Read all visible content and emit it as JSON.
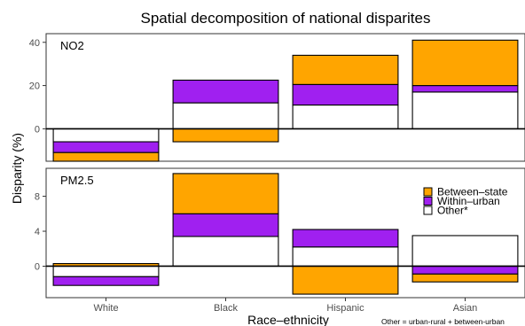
{
  "chart_data": {
    "type": "bar",
    "title": "Spatial decomposition of national disparites",
    "xlabel": "Race–ethnicity",
    "ylabel": "Disparity (%)",
    "categories": [
      "White",
      "Black",
      "Hispanic",
      "Asian"
    ],
    "legend": {
      "placement": "right",
      "entries": [
        {
          "name": "Between–state",
          "color": "#FFA500"
        },
        {
          "name": "Within–urban",
          "color": "#A020F0"
        },
        {
          "name": "Other*",
          "color": "#FFFFFF"
        }
      ]
    },
    "note": "Other = urban-rural + between-urban",
    "panels": [
      {
        "label": "NO2",
        "ylim": [
          -15,
          44
        ],
        "yticks": [
          0,
          20,
          40
        ],
        "series": [
          {
            "name": "Other*",
            "values": [
              -6,
              12,
              11,
              17
            ]
          },
          {
            "name": "Within–urban",
            "values": [
              -5,
              10.5,
              9.5,
              3
            ]
          },
          {
            "name": "Between–state",
            "values": [
              -4,
              -6,
              13.5,
              21
            ]
          }
        ]
      },
      {
        "label": "PM2.5",
        "ylim": [
          -3.6,
          11.2
        ],
        "yticks": [
          0,
          4,
          8
        ],
        "series": [
          {
            "name": "Other*",
            "values": [
              -1.2,
              3.4,
              2.2,
              3.5
            ]
          },
          {
            "name": "Within–urban",
            "values": [
              -1.0,
              2.6,
              2.0,
              -0.9
            ]
          },
          {
            "name": "Between–state",
            "values": [
              0.3,
              4.6,
              -3.2,
              -0.9
            ]
          }
        ]
      }
    ]
  }
}
